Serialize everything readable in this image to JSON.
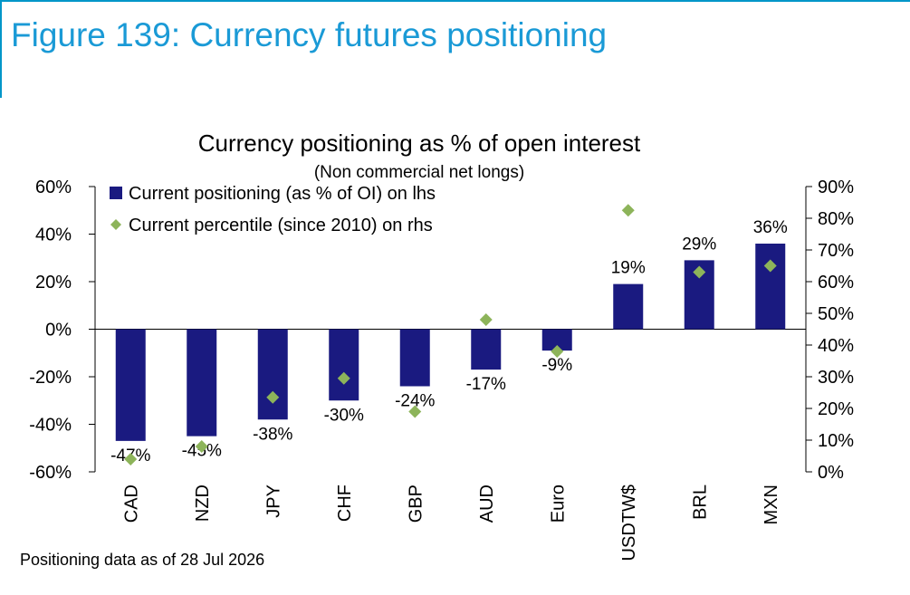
{
  "figure_title": "Figure 139: Currency futures positioning",
  "footnote": "Positioning data as of 28 Jul 2026",
  "colors": {
    "title": "#1a9ad6",
    "bar": "#1a1a80",
    "marker": "#8db45a",
    "rule": "#0096c8"
  },
  "chart_data": {
    "type": "bar",
    "title": "Currency positioning as % of open interest",
    "subtitle": "(Non commercial net longs)",
    "categories": [
      "CAD",
      "NZD",
      "JPY",
      "CHF",
      "GBP",
      "AUD",
      "Euro",
      "USDTW$",
      "BRL",
      "MXN"
    ],
    "series": [
      {
        "name": "Current positioning (as % of OI) on lhs",
        "kind": "bar",
        "axis": "left",
        "values": [
          -47,
          -45,
          -38,
          -30,
          -24,
          -17,
          -9,
          19,
          29,
          36
        ],
        "labels": [
          "-47%",
          "-45%",
          "-38%",
          "-30%",
          "-24%",
          "-17%",
          "-9%",
          "19%",
          "29%",
          "36%"
        ]
      },
      {
        "name": "Current percentile (since 2010) on rhs",
        "kind": "marker",
        "axis": "right",
        "values": [
          4,
          8,
          23.5,
          29.5,
          19,
          48,
          38,
          82.5,
          63,
          65
        ]
      }
    ],
    "y_left": {
      "min": -60,
      "max": 60,
      "step": 20,
      "ticks": [
        "-60%",
        "-40%",
        "-20%",
        "0%",
        "20%",
        "40%",
        "60%"
      ]
    },
    "y_right": {
      "min": 0,
      "max": 90,
      "step": 10,
      "ticks": [
        "0%",
        "10%",
        "20%",
        "30%",
        "40%",
        "50%",
        "60%",
        "70%",
        "80%",
        "90%"
      ]
    },
    "legend_position": "top-left",
    "grid": false
  }
}
